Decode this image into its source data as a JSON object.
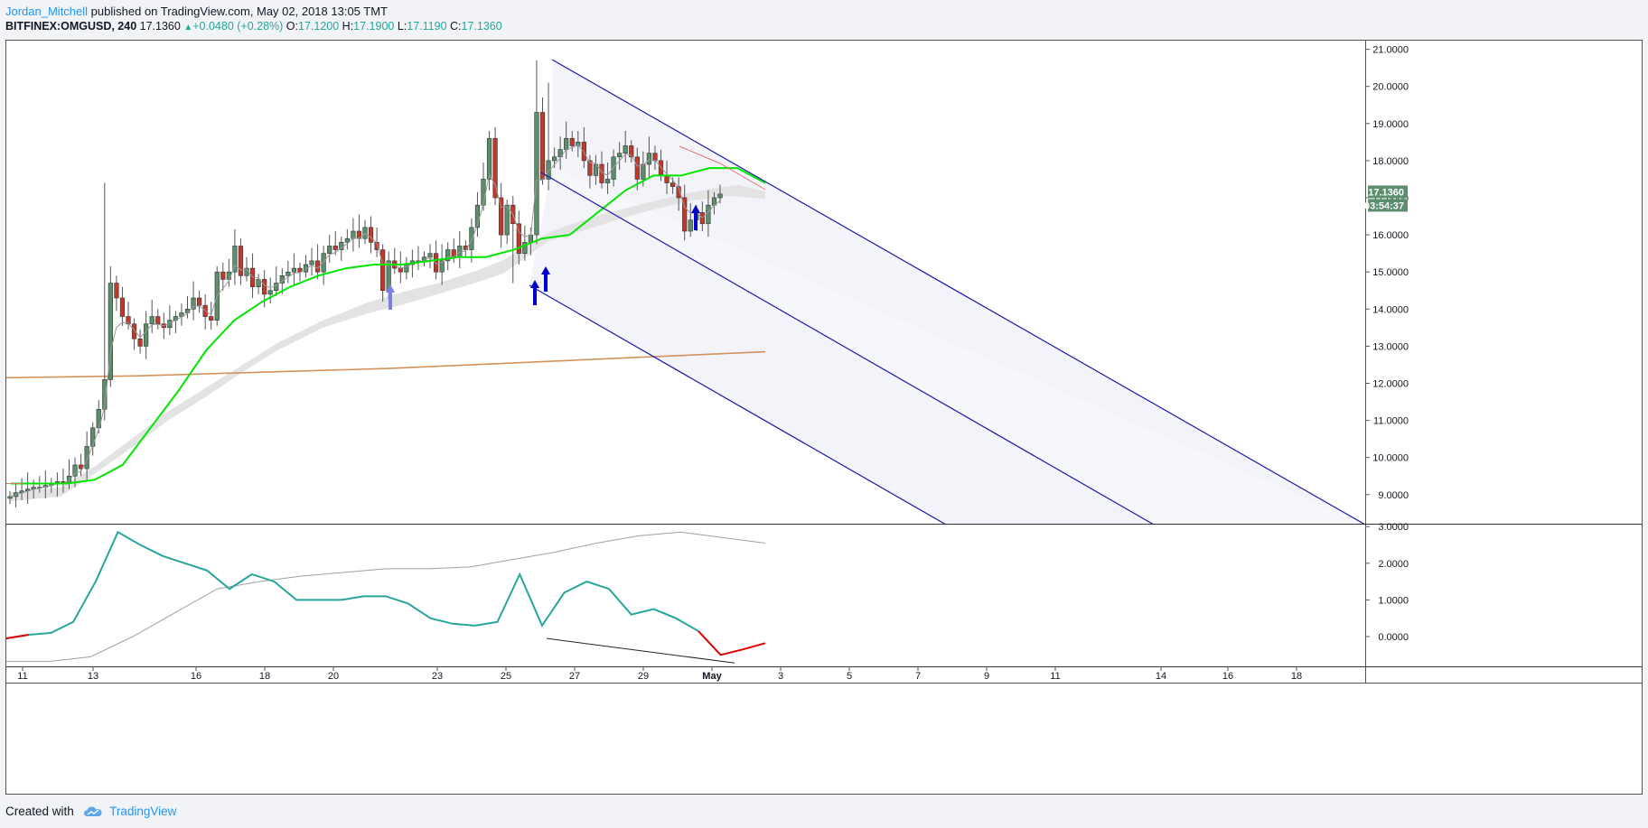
{
  "header": {
    "author": "Jordan_Mitchell",
    "published": "published on TradingView.com, May 02, 2018 13:05 TMT"
  },
  "symbol_line": {
    "symbol": "BITFINEX:OMGUSD, 240",
    "last": "17.1360",
    "arrow": "▲",
    "change": "+0.0480 (+0.28%)",
    "o_label": "O:",
    "o": "17.1200",
    "h_label": "H:",
    "h": "17.1900",
    "l_label": "L:",
    "l": "17.1190",
    "c_label": "C:",
    "c": "17.1360"
  },
  "footer": {
    "created_with": "Created with",
    "brand": "TradingView"
  },
  "colors": {
    "bull": "#5b8e6a",
    "bear": "#c0392b",
    "ema_fast": "#00e600",
    "sma_long": "#d4915a",
    "pitchfork": "#1a1aa8",
    "arrow": "#0000cc",
    "arrow_light": "#7d7de8",
    "osc": "#26a69a",
    "osc_neg": "#e00000",
    "osc_signal": "#a0a0a0"
  },
  "chart_data": [
    {
      "type": "candlestick",
      "title": "BITFINEX:OMGUSD, 240",
      "x_tick_labels": [
        "11",
        "13",
        "16",
        "18",
        "20",
        "23",
        "25",
        "27",
        "29",
        "May",
        "3",
        "5",
        "7",
        "9",
        "11",
        "14",
        "16",
        "18"
      ],
      "y_tick_labels": [
        "9.0000",
        "10.0000",
        "11.0000",
        "12.0000",
        "13.0000",
        "14.0000",
        "15.0000",
        "16.0000",
        "17.0000",
        "18.0000",
        "19.0000",
        "20.0000",
        "21.0000"
      ],
      "ylim": [
        8.2,
        21.2
      ],
      "last_price_label": "17.1360",
      "countdown_label": "03:54:37",
      "close_series": [
        8.95,
        9.05,
        9.1,
        9.15,
        9.2,
        9.2,
        9.25,
        9.3,
        9.35,
        9.3,
        9.5,
        9.8,
        9.7,
        10.3,
        10.8,
        11.3,
        12.1,
        14.7,
        14.3,
        13.8,
        13.6,
        13.2,
        13.0,
        13.6,
        13.8,
        13.6,
        13.5,
        13.7,
        13.8,
        13.9,
        14.0,
        14.3,
        14.1,
        13.8,
        13.7,
        15.0,
        14.8,
        15.0,
        15.7,
        14.9,
        15.1,
        14.6,
        14.8,
        14.4,
        14.5,
        14.7,
        14.9,
        15.0,
        15.1,
        15.0,
        15.2,
        15.3,
        15.0,
        15.5,
        15.7,
        15.6,
        15.8,
        15.9,
        16.1,
        15.9,
        16.2,
        15.8,
        15.6,
        14.5,
        15.3,
        15.1,
        15.0,
        15.2,
        15.3,
        15.3,
        15.4,
        15.5,
        15.0,
        15.3,
        15.6,
        15.4,
        15.7,
        15.6,
        16.2,
        16.8,
        17.5,
        18.6,
        17.0,
        16.0,
        16.8,
        16.3,
        15.5,
        15.8,
        16.0,
        19.3,
        17.5,
        18.0,
        18.1,
        18.3,
        18.6,
        18.4,
        18.5,
        18.0,
        17.6,
        17.9,
        17.4,
        17.5,
        18.1,
        18.2,
        18.4,
        18.1,
        17.5,
        17.9,
        18.2,
        18.0,
        17.6,
        17.4,
        17.3,
        17.0,
        16.1,
        16.4,
        16.6,
        16.3,
        16.8,
        17.0,
        17.1
      ],
      "ema_fast_approx": [
        9.3,
        9.3,
        9.3,
        9.4,
        9.8,
        10.8,
        11.8,
        12.9,
        13.7,
        14.2,
        14.6,
        14.9,
        15.1,
        15.2,
        15.2,
        15.3,
        15.4,
        15.4,
        15.6,
        15.9,
        16.0,
        16.6,
        17.2,
        17.6,
        17.6,
        17.8,
        17.8,
        17.4
      ],
      "sma_long_approx": [
        12.15,
        12.2,
        12.3,
        12.4,
        12.55,
        12.7,
        12.85
      ],
      "markers": [
        {
          "type": "arrow-up",
          "at": "21",
          "price": 14.4
        },
        {
          "type": "arrow-up",
          "at": "25",
          "price": 14.5
        },
        {
          "type": "arrow-up",
          "at": "26",
          "price": 15.0
        },
        {
          "type": "arrow-up",
          "at": "30",
          "price": 16.5
        }
      ]
    },
    {
      "type": "line",
      "title": "",
      "y_tick_labels": [
        "0.0000",
        "1.0000",
        "2.0000",
        "3.0000"
      ],
      "ylim": [
        -0.8,
        3.05
      ],
      "series": [
        {
          "values": [
            -0.05,
            0.05,
            0.1,
            0.4,
            1.5,
            2.85,
            2.5,
            2.2,
            2.0,
            1.8,
            1.3,
            1.7,
            1.5,
            1.0,
            1.0,
            1.0,
            1.1,
            1.1,
            0.9,
            0.5,
            0.35,
            0.3,
            0.4,
            1.7,
            0.3,
            1.2,
            1.5,
            1.3,
            0.6,
            0.75,
            0.5,
            0.15,
            -0.5,
            -0.35,
            -0.18
          ]
        },
        {
          "values": [
            -0.68,
            -0.68,
            -0.55,
            0.0,
            0.65,
            1.3,
            1.5,
            1.65,
            1.75,
            1.85,
            1.85,
            1.9,
            2.1,
            2.3,
            2.55,
            2.75,
            2.85,
            2.7,
            2.55
          ]
        }
      ],
      "divergence_line": {
        "from": {
          "at": "26",
          "value": -0.05
        },
        "to": {
          "at": "May 1",
          "value": -0.72
        }
      }
    }
  ]
}
